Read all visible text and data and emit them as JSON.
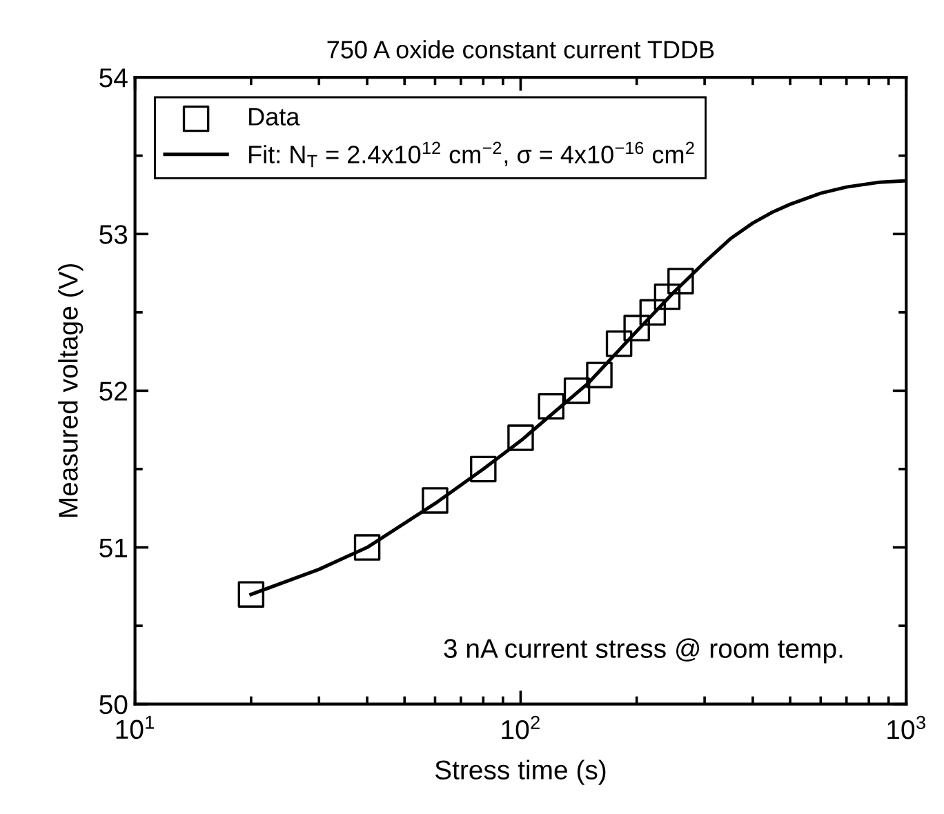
{
  "chart_data": {
    "type": "scatter",
    "title": "750 A oxide constant current TDDB",
    "xlabel": "Stress time (s)",
    "ylabel": "Measured voltage (V)",
    "log": "x",
    "xlim": [
      10,
      1000
    ],
    "xticks": [
      {
        "value": 10,
        "label": "10$^{1}$"
      },
      {
        "value": 100,
        "label": "10$^{2}$"
      },
      {
        "value": 1000,
        "label": "10$^{3}$"
      }
    ],
    "ylim": [
      50,
      54
    ],
    "yticks": [
      50,
      51,
      52,
      53,
      54
    ],
    "grid": false,
    "legend": "top left",
    "series": [
      {
        "name": "Data",
        "marker": "square",
        "color": "#000000",
        "x": [
          20,
          40,
          60,
          80,
          100,
          120,
          140,
          160,
          180,
          200,
          220,
          240,
          260
        ],
        "values": [
          50.7,
          51.0,
          51.3,
          51.5,
          51.7,
          51.9,
          52.0,
          52.1,
          52.3,
          52.4,
          52.5,
          52.6,
          52.7
        ]
      },
      {
        "name": "Fit: N$_{T}$ = 2.4x10$^{12}$ cm$^{−2}$, σ = 4x10$^{−16}$ cm$^{2}$",
        "type": "line",
        "line_style": "solid",
        "marker": "none",
        "color": "#000000",
        "x": [
          20,
          30,
          40,
          60,
          80,
          100,
          150,
          200,
          250,
          300,
          350,
          400,
          450,
          500,
          600,
          700,
          850,
          1000
        ],
        "values": [
          50.7,
          50.86,
          51.0,
          51.28,
          51.5,
          51.68,
          52.05,
          52.38,
          52.63,
          52.82,
          52.97,
          53.07,
          53.14,
          53.19,
          53.26,
          53.3,
          53.33,
          53.34
        ]
      }
    ],
    "annotations": [
      "3 nA current stress @ room temp."
    ]
  }
}
